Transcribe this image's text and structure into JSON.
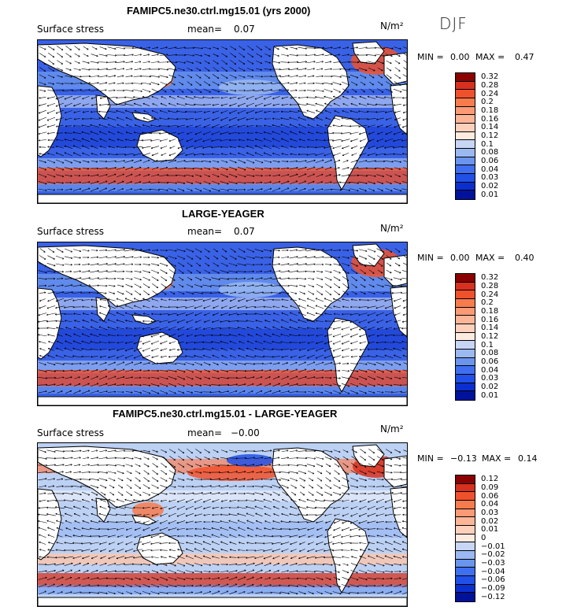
{
  "season": "DJF",
  "chart_data": [
    {
      "type": "heatmap",
      "title": "FAMIPC5.ne30.ctrl.mg15.01 (yrs 2000)",
      "variable": "Surface stress",
      "mean_label": "mean=",
      "mean_value": "0.07",
      "units": "N/m²",
      "min_label": "MIN =",
      "min_value": "0.00",
      "max_label": "MAX =",
      "max_value": "0.47",
      "colorbar_levels": [
        "0.32",
        "0.28",
        "0.24",
        "0.2",
        "0.18",
        "0.16",
        "0.14",
        "0.12",
        "0.1",
        "0.08",
        "0.06",
        "0.04",
        "0.03",
        "0.02",
        "0.01"
      ],
      "colorbar_colors": [
        "#8b0000",
        "#d7301f",
        "#f0512d",
        "#f77b4d",
        "#fb9a74",
        "#fdb598",
        "#fdd0bc",
        "#fdebe0",
        "#c7d6f5",
        "#9ab8f2",
        "#6a95ee",
        "#3f6ff0",
        "#2150e8",
        "#0b2fcf",
        "#00129c"
      ]
    },
    {
      "type": "heatmap",
      "title": "LARGE-YEAGER",
      "variable": "Surface stress",
      "mean_label": "mean=",
      "mean_value": "0.07",
      "units": "N/m²",
      "min_label": "MIN =",
      "min_value": "0.00",
      "max_label": "MAX =",
      "max_value": "0.40",
      "colorbar_levels": [
        "0.32",
        "0.28",
        "0.24",
        "0.2",
        "0.18",
        "0.16",
        "0.14",
        "0.12",
        "0.1",
        "0.08",
        "0.06",
        "0.04",
        "0.03",
        "0.02",
        "0.01"
      ],
      "colorbar_colors": [
        "#8b0000",
        "#d7301f",
        "#f0512d",
        "#f77b4d",
        "#fb9a74",
        "#fdb598",
        "#fdd0bc",
        "#fdebe0",
        "#c7d6f5",
        "#9ab8f2",
        "#6a95ee",
        "#3f6ff0",
        "#2150e8",
        "#0b2fcf",
        "#00129c"
      ]
    },
    {
      "type": "heatmap",
      "title": "FAMIPC5.ne30.ctrl.mg15.01 - LARGE-YEAGER",
      "variable": "Surface stress",
      "mean_label": "mean=",
      "mean_value": "−0.00",
      "units": "N/m²",
      "min_label": "MIN =",
      "min_value": "−0.13",
      "max_label": "MAX =",
      "max_value": "0.14",
      "colorbar_levels": [
        "0.12",
        "0.09",
        "0.06",
        "0.04",
        "0.03",
        "0.02",
        "0.01",
        "0",
        "−0.01",
        "−0.02",
        "−0.03",
        "−0.04",
        "−0.06",
        "−0.09",
        "−0.12"
      ],
      "colorbar_colors": [
        "#8b0000",
        "#d7301f",
        "#f0512d",
        "#f77b4d",
        "#fb9a74",
        "#fdb598",
        "#fdd0bc",
        "#fdebe0",
        "#c7d6f5",
        "#9ab8f2",
        "#6a95ee",
        "#3f6ff0",
        "#2150e8",
        "#0b2fcf",
        "#00129c"
      ]
    }
  ]
}
